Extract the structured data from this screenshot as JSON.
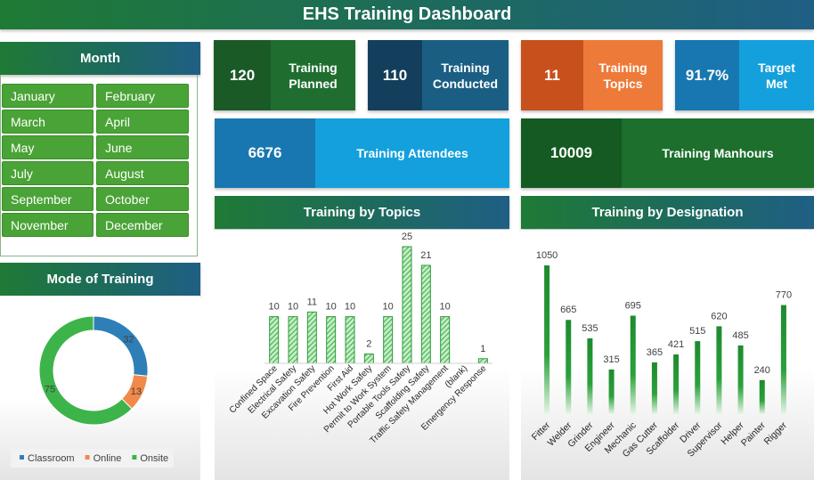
{
  "title": "EHS Training Dashboard",
  "month_slicer": {
    "title": "Month",
    "items": [
      "January",
      "February",
      "March",
      "April",
      "May",
      "June",
      "July",
      "August",
      "September",
      "October",
      "November",
      "December"
    ]
  },
  "kpis": [
    {
      "value": 120,
      "label": "Training Planned"
    },
    {
      "value": 110,
      "label": "Training Conducted"
    },
    {
      "value": 11,
      "label": "Training Topics"
    },
    {
      "value": 91.7,
      "value_label": "91.7%",
      "label": "Target Met"
    },
    {
      "value": 6676,
      "label": "Training Attendees"
    },
    {
      "value": 10009,
      "label": "Training Manhours"
    }
  ],
  "chart_data": [
    {
      "type": "donut",
      "title": "Mode of Training",
      "categories": [
        "Classroom",
        "Online",
        "Onsite"
      ],
      "values": [
        32,
        13,
        75
      ],
      "colors": [
        "#2e7fb8",
        "#f08a4b",
        "#3cb44a"
      ],
      "legend": "bottom"
    },
    {
      "type": "bar",
      "title": "Training by Topics",
      "categories": [
        "Confined Space",
        "Electrical Safety",
        "Excavation Safety",
        "Fire Prevention",
        "First Aid",
        "Hot Work Safety",
        "Permit to Work System",
        "Portable Tools Safety",
        "Scaffolding Safety",
        "Traffic Safety Management",
        "(blank)",
        "Emergency Response"
      ],
      "values": [
        10,
        10,
        11,
        10,
        10,
        2,
        10,
        25,
        21,
        10,
        null,
        1
      ],
      "color": "#3cb44a"
    },
    {
      "type": "bar",
      "title": "Training by Designation",
      "categories": [
        "Fitter",
        "Welder",
        "Grinder",
        "Engineer",
        "Mechanic",
        "Gas Cutter",
        "Scaffolder",
        "Driver",
        "Supervisor",
        "Helper",
        "Painter",
        "Rigger"
      ],
      "values": [
        1050,
        665,
        535,
        315,
        695,
        365,
        421,
        515,
        620,
        485,
        240,
        770
      ],
      "color": "#1e8a2e"
    }
  ]
}
